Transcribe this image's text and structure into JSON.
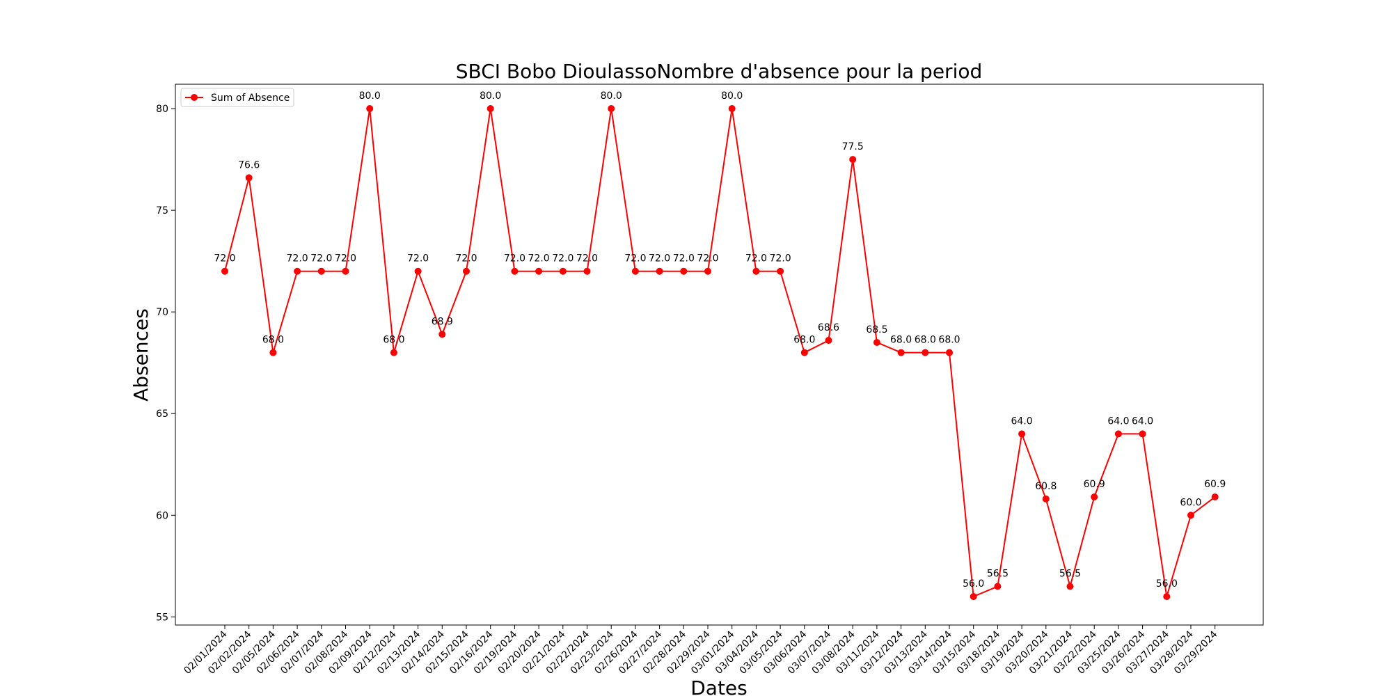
{
  "chart_data": {
    "type": "line",
    "title": "SBCI Bobo DioulassoNombre d'absence pour la period",
    "xlabel": "Dates",
    "ylabel": "Absences",
    "ylim": [
      54.6,
      81.2
    ],
    "yticks": [
      55,
      60,
      65,
      70,
      75,
      80
    ],
    "grid": false,
    "legend": "top-left",
    "categories": [
      "02/01/2024",
      "02/02/2024",
      "02/05/2024",
      "02/06/2024",
      "02/07/2024",
      "02/08/2024",
      "02/09/2024",
      "02/12/2024",
      "02/13/2024",
      "02/14/2024",
      "02/15/2024",
      "02/16/2024",
      "02/19/2024",
      "02/20/2024",
      "02/21/2024",
      "02/22/2024",
      "02/23/2024",
      "02/26/2024",
      "02/27/2024",
      "02/28/2024",
      "02/29/2024",
      "03/01/2024",
      "03/04/2024",
      "03/05/2024",
      "03/06/2024",
      "03/07/2024",
      "03/08/2024",
      "03/11/2024",
      "03/12/2024",
      "03/13/2024",
      "03/14/2024",
      "03/15/2024",
      "03/18/2024",
      "03/19/2024",
      "03/20/2024",
      "03/21/2024",
      "03/22/2024",
      "03/25/2024",
      "03/26/2024",
      "03/27/2024",
      "03/28/2024",
      "03/29/2024"
    ],
    "series": [
      {
        "name": "Sum of Absence",
        "color": "#ff0000",
        "values": [
          72.0,
          76.6,
          68.0,
          72.0,
          72.0,
          72.0,
          80.0,
          68.0,
          72.0,
          68.9,
          72.0,
          80.0,
          72.0,
          72.0,
          72.0,
          72.0,
          80.0,
          72.0,
          72.0,
          72.0,
          72.0,
          80.0,
          72.0,
          72.0,
          68.0,
          68.6,
          77.5,
          68.5,
          68.0,
          68.0,
          68.0,
          56.0,
          56.5,
          64.0,
          60.8,
          56.5,
          60.9,
          64.0,
          64.0,
          56.0,
          60.0,
          60.9
        ]
      }
    ]
  }
}
